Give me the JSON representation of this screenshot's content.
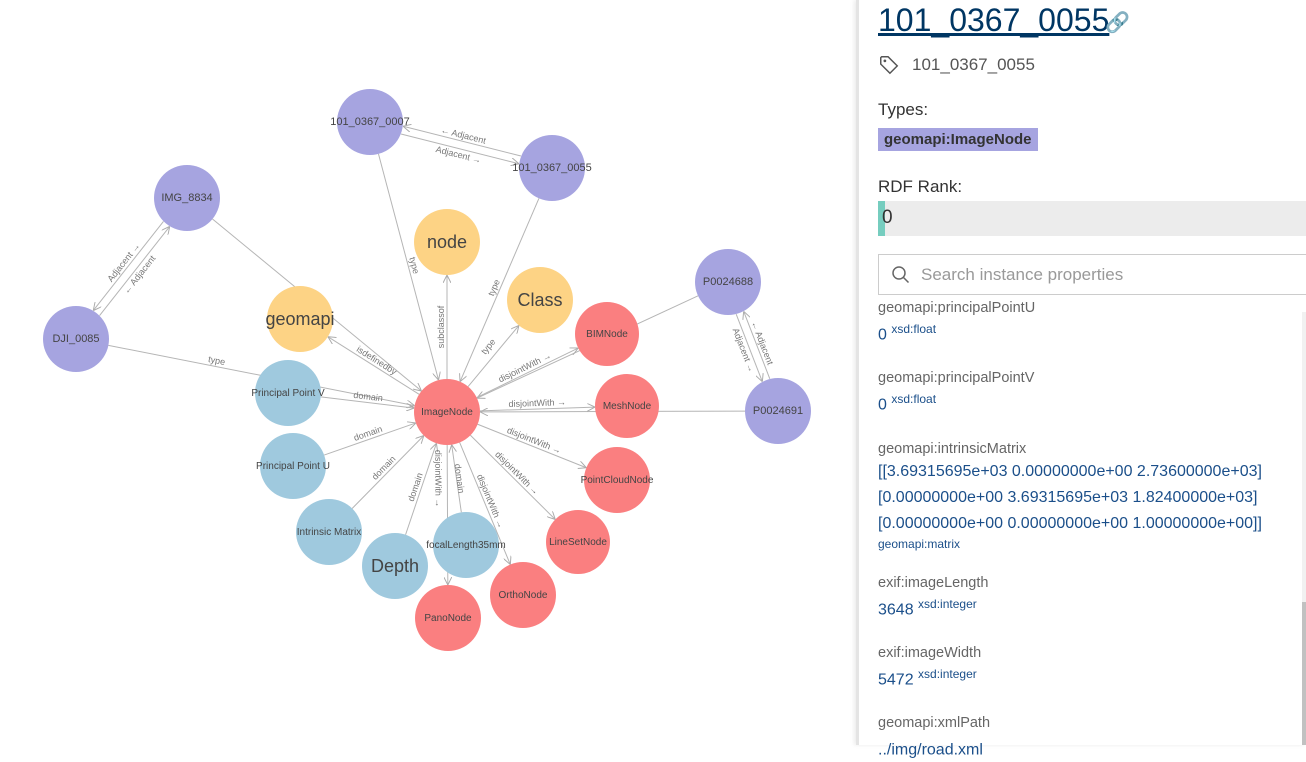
{
  "graph": {
    "colors": {
      "instance": "#a6a4e0",
      "class_yellow": "#fdd385",
      "red": "#fa7f80",
      "blue": "#9fc9de",
      "edge": "#b5b5b5"
    },
    "nodes": [
      {
        "id": "n0007",
        "label": "101_0367_0007",
        "kind": "instance"
      },
      {
        "id": "n0055",
        "label": "101_0367_0055",
        "kind": "instance"
      },
      {
        "id": "img8834",
        "label": "IMG_8834",
        "kind": "instance"
      },
      {
        "id": "dji0085",
        "label": "DJI_0085",
        "kind": "instance"
      },
      {
        "id": "p688",
        "label": "P0024688",
        "kind": "instance"
      },
      {
        "id": "p691",
        "label": "P0024691",
        "kind": "instance"
      },
      {
        "id": "node",
        "label": "node",
        "kind": "class_yellow"
      },
      {
        "id": "class",
        "label": "Class",
        "kind": "class_yellow"
      },
      {
        "id": "geomapi",
        "label": "geomapi",
        "kind": "class_yellow"
      },
      {
        "id": "image",
        "label": "ImageNode",
        "kind": "red"
      },
      {
        "id": "bim",
        "label": "BIMNode",
        "kind": "red"
      },
      {
        "id": "mesh",
        "label": "MeshNode",
        "kind": "red"
      },
      {
        "id": "pc",
        "label": "PointCloudNode",
        "kind": "red"
      },
      {
        "id": "ls",
        "label": "LineSetNode",
        "kind": "red"
      },
      {
        "id": "ortho",
        "label": "OrthoNode",
        "kind": "red"
      },
      {
        "id": "pano",
        "label": "PanoNode",
        "kind": "red"
      },
      {
        "id": "ppv",
        "label": "Principal Point V",
        "kind": "blue"
      },
      {
        "id": "ppu",
        "label": "Principal Point U",
        "kind": "blue"
      },
      {
        "id": "im",
        "label": "Intrinsic Matrix",
        "kind": "blue"
      },
      {
        "id": "depth",
        "label": "Depth",
        "kind": "blue"
      },
      {
        "id": "fl",
        "label": "focalLength35mm",
        "kind": "blue"
      }
    ],
    "edges": [
      {
        "from": "n0007",
        "to": "n0055",
        "label": "Adjacent →"
      },
      {
        "from": "n0055",
        "to": "n0007",
        "label": "← Adjacent"
      },
      {
        "from": "img8834",
        "to": "dji0085",
        "label": "Adjacent →"
      },
      {
        "from": "dji0085",
        "to": "img8834",
        "label": "← Adjacent"
      },
      {
        "from": "p688",
        "to": "p691",
        "label": "Adjacent →"
      },
      {
        "from": "p691",
        "to": "p688",
        "label": "← Adjacent"
      },
      {
        "from": "n0007",
        "to": "image",
        "label": "type"
      },
      {
        "from": "n0055",
        "to": "image",
        "label": "type"
      },
      {
        "from": "img8834",
        "to": "image",
        "label": ""
      },
      {
        "from": "dji0085",
        "to": "image",
        "label": "type"
      },
      {
        "from": "p688",
        "to": "image",
        "label": ""
      },
      {
        "from": "p691",
        "to": "image",
        "label": ""
      },
      {
        "from": "image",
        "to": "node",
        "label": "subclassof"
      },
      {
        "from": "image",
        "to": "class",
        "label": "type"
      },
      {
        "from": "image",
        "to": "geomapi",
        "label": "isdefinedby"
      },
      {
        "from": "ppv",
        "to": "image",
        "label": "domain"
      },
      {
        "from": "ppu",
        "to": "image",
        "label": "domain"
      },
      {
        "from": "im",
        "to": "image",
        "label": "domain"
      },
      {
        "from": "depth",
        "to": "image",
        "label": "domain"
      },
      {
        "from": "fl",
        "to": "image",
        "label": "domain"
      },
      {
        "from": "image",
        "to": "bim",
        "label": "disjointWith →"
      },
      {
        "from": "image",
        "to": "mesh",
        "label": "disjointWith →"
      },
      {
        "from": "image",
        "to": "pc",
        "label": "disjointWith →"
      },
      {
        "from": "image",
        "to": "ls",
        "label": "disjointWith →"
      },
      {
        "from": "image",
        "to": "ortho",
        "label": "disjointWith →"
      },
      {
        "from": "image",
        "to": "pano",
        "label": "disjointWith →"
      }
    ]
  },
  "panel": {
    "title": "101_0367_0055",
    "link_icon": "link-icon",
    "tag_icon": "tag-icon",
    "label": "101_0367_0055",
    "types_label": "Types:",
    "types": [
      "geomapi:ImageNode"
    ],
    "rdf_rank_label": "RDF Rank:",
    "rdf_rank": 0,
    "rdf_rank_text": "0",
    "search_placeholder": "Search instance properties",
    "properties": [
      {
        "name": "geomapi:principalPointU",
        "value": "0",
        "type": "xsd:float"
      },
      {
        "name": "geomapi:principalPointV",
        "value": "0",
        "type": "xsd:float"
      },
      {
        "name": "geomapi:intrinsicMatrix",
        "value_lines": [
          "[[3.69315695e+03 0.00000000e+00 2.73600000e+03]",
          "[0.00000000e+00 3.69315695e+03 1.82400000e+03]",
          "[0.00000000e+00 0.00000000e+00 1.00000000e+00]]"
        ],
        "type": "geomapi:matrix"
      },
      {
        "name": "exif:imageLength",
        "value": "3648",
        "type": "xsd:integer"
      },
      {
        "name": "exif:imageWidth",
        "value": "5472",
        "type": "xsd:integer"
      },
      {
        "name": "geomapi:xmlPath",
        "value": "../img/road.xml",
        "type": ""
      }
    ]
  }
}
